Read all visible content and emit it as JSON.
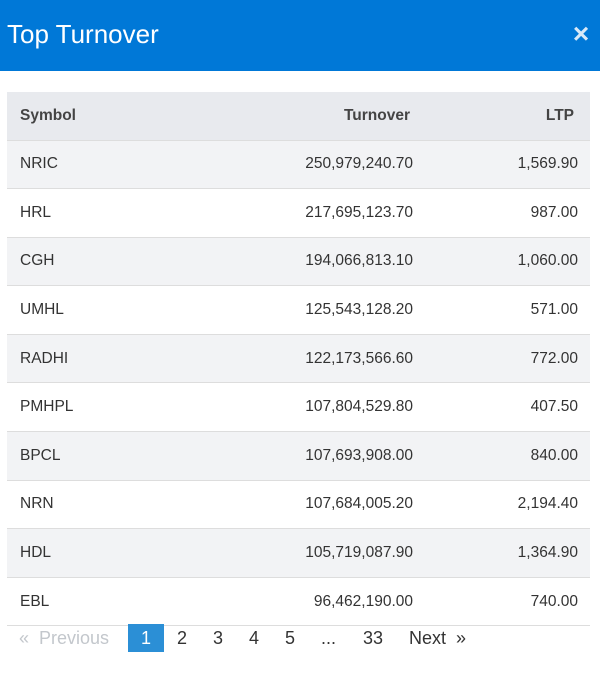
{
  "header": {
    "title": "Top Turnover",
    "close_label": "×"
  },
  "table": {
    "columns": [
      "Symbol",
      "Turnover",
      "LTP"
    ],
    "rows": [
      {
        "symbol": "NRIC",
        "turnover": "250,979,240.70",
        "ltp": "1,569.90"
      },
      {
        "symbol": "HRL",
        "turnover": "217,695,123.70",
        "ltp": "987.00"
      },
      {
        "symbol": "CGH",
        "turnover": "194,066,813.10",
        "ltp": "1,060.00"
      },
      {
        "symbol": "UMHL",
        "turnover": "125,543,128.20",
        "ltp": "571.00"
      },
      {
        "symbol": "RADHI",
        "turnover": "122,173,566.60",
        "ltp": "772.00"
      },
      {
        "symbol": "PMHPL",
        "turnover": "107,804,529.80",
        "ltp": "407.50"
      },
      {
        "symbol": "BPCL",
        "turnover": "107,693,908.00",
        "ltp": "840.00"
      },
      {
        "symbol": "NRN",
        "turnover": "107,684,005.20",
        "ltp": "2,194.40"
      },
      {
        "symbol": "HDL",
        "turnover": "105,719,087.90",
        "ltp": "1,364.90"
      },
      {
        "symbol": "EBL",
        "turnover": "96,462,190.00",
        "ltp": "740.00"
      }
    ]
  },
  "pagination": {
    "previous_label": "«  Previous",
    "pages": [
      "1",
      "2",
      "3",
      "4",
      "5"
    ],
    "ellipsis": "...",
    "last_page": "33",
    "next_label": "Next  »",
    "active_page": "1"
  }
}
